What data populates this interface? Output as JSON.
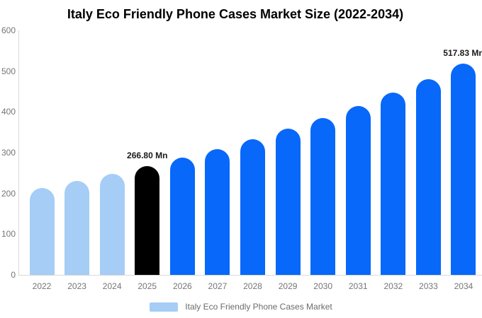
{
  "title": "Italy Eco Friendly Phone Cases Market Size (2022-2034)",
  "legend": {
    "label": "Italy Eco Friendly Phone Cases Market",
    "swatch_color": "#a5cdf6"
  },
  "colors": {
    "historical_bar": "#a5cdf6",
    "base_year_bar": "#000000",
    "forecast_bar": "#0768fa",
    "axis_line": "#d9d9d9",
    "tick_text": "#757575",
    "legend_text": "#6b6b6b",
    "title_text": "#000000",
    "annotation_text": "#1a1a1a"
  },
  "chart_data": {
    "type": "bar",
    "title": "Italy Eco Friendly Phone Cases Market Size (2022-2034)",
    "categories": [
      "2022",
      "2023",
      "2024",
      "2025",
      "2026",
      "2027",
      "2028",
      "2029",
      "2030",
      "2031",
      "2032",
      "2033",
      "2034"
    ],
    "values": [
      213.9,
      230.2,
      247.9,
      266.8,
      287.2,
      309.2,
      332.8,
      358.3,
      385.7,
      415.2,
      446.9,
      481.1,
      517.83
    ],
    "unit": "Mn",
    "bar_colors": [
      "#a5cdf6",
      "#a5cdf6",
      "#a5cdf6",
      "#000000",
      "#0768fa",
      "#0768fa",
      "#0768fa",
      "#0768fa",
      "#0768fa",
      "#0768fa",
      "#0768fa",
      "#0768fa",
      "#0768fa"
    ],
    "annotations": [
      {
        "category": "2025",
        "text": "266.80 Mn"
      },
      {
        "category": "2034",
        "text": "517.83 Mn"
      }
    ],
    "ylim": [
      0,
      600
    ],
    "yticks": [
      0,
      100,
      200,
      300,
      400,
      500,
      600
    ],
    "grid": false,
    "legend_position": "bottom",
    "legend_entries": [
      "Italy Eco Friendly Phone Cases Market"
    ]
  }
}
